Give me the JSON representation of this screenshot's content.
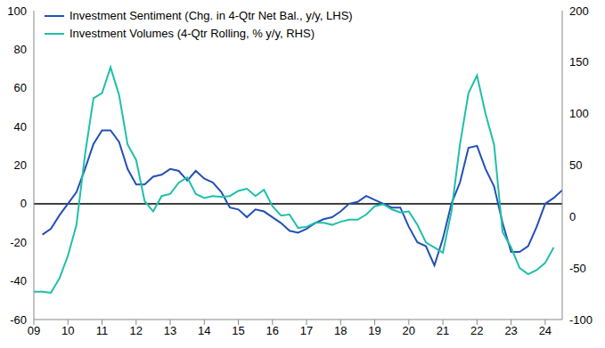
{
  "chart_data": {
    "type": "line",
    "legend": "upper left",
    "grid": false,
    "x": [
      2009.0,
      2009.25,
      2009.5,
      2009.75,
      2010.0,
      2010.25,
      2010.5,
      2010.75,
      2011.0,
      2011.25,
      2011.5,
      2011.75,
      2012.0,
      2012.25,
      2012.5,
      2012.75,
      2013.0,
      2013.25,
      2013.5,
      2013.75,
      2014.0,
      2014.25,
      2014.5,
      2014.75,
      2015.0,
      2015.25,
      2015.5,
      2015.75,
      2016.0,
      2016.25,
      2016.5,
      2016.75,
      2017.0,
      2017.25,
      2017.5,
      2017.75,
      2018.0,
      2018.25,
      2018.5,
      2018.75,
      2019.0,
      2019.25,
      2019.5,
      2019.75,
      2020.0,
      2020.25,
      2020.5,
      2020.75,
      2021.0,
      2021.25,
      2021.5,
      2021.75,
      2022.0,
      2022.25,
      2022.5,
      2022.75,
      2023.0,
      2023.25,
      2023.5,
      2023.75,
      2024.0,
      2024.25,
      2024.5
    ],
    "series": [
      {
        "name": "Investment Sentiment (Chg. in 4-Qtr Net Bal., y/y, LHS)",
        "color": "#2350b5",
        "values": [
          null,
          -16,
          -13,
          -6,
          0,
          6,
          18,
          31,
          38,
          38,
          32,
          18,
          10,
          10,
          14,
          15,
          18,
          17,
          12,
          17,
          13,
          11,
          6,
          -2,
          -3,
          -7,
          -3,
          -4,
          -7,
          -10,
          -14,
          -15,
          -13,
          -10,
          -8,
          -7,
          -4,
          0,
          1,
          4,
          2,
          0,
          -2,
          -2,
          -12,
          -20,
          -22,
          -32,
          -18,
          0,
          11,
          29,
          30,
          18,
          9,
          -10,
          -25,
          -25,
          -22,
          -12,
          0,
          3,
          7
        ]
      },
      {
        "name": "Investment Volumes (4-Qtr Rolling, % y/y, RHS)",
        "color": "#20bfa9",
        "axis": "y2",
        "values": [
          -73,
          -73,
          -74,
          -60,
          -38,
          -8,
          60,
          115,
          120,
          145,
          118,
          70,
          55,
          15,
          5,
          20,
          22,
          33,
          38,
          22,
          18,
          20,
          19,
          20,
          25,
          27,
          20,
          26,
          10,
          1,
          2,
          -11,
          -10,
          -6,
          -6,
          -8,
          -5,
          -3,
          -3,
          2,
          10,
          12,
          7,
          4,
          5,
          -8,
          -25,
          -30,
          -35,
          5,
          70,
          120,
          137,
          100,
          70,
          -15,
          -30,
          -50,
          -56,
          -52,
          -45,
          -30,
          null
        ]
      }
    ],
    "xlim": [
      2009,
      2024.5
    ],
    "xticks": [
      {
        "value": 2009,
        "label": "09"
      },
      {
        "value": 2010,
        "label": "10"
      },
      {
        "value": 2011,
        "label": "11"
      },
      {
        "value": 2012,
        "label": "12"
      },
      {
        "value": 2013,
        "label": "13"
      },
      {
        "value": 2014,
        "label": "14"
      },
      {
        "value": 2015,
        "label": "15"
      },
      {
        "value": 2016,
        "label": "16"
      },
      {
        "value": 2017,
        "label": "17"
      },
      {
        "value": 2018,
        "label": "18"
      },
      {
        "value": 2019,
        "label": "19"
      },
      {
        "value": 2020,
        "label": "20"
      },
      {
        "value": 2021,
        "label": "21"
      },
      {
        "value": 2022,
        "label": "22"
      },
      {
        "value": 2023,
        "label": "23"
      },
      {
        "value": 2024,
        "label": "24"
      }
    ],
    "ylim": [
      -60,
      100
    ],
    "yticks": [
      -60,
      -40,
      -20,
      0,
      20,
      40,
      60,
      80,
      100
    ],
    "y2lim": [
      -100,
      200
    ],
    "y2ticks": [
      -100,
      -50,
      0,
      50,
      100,
      150,
      200
    ]
  }
}
